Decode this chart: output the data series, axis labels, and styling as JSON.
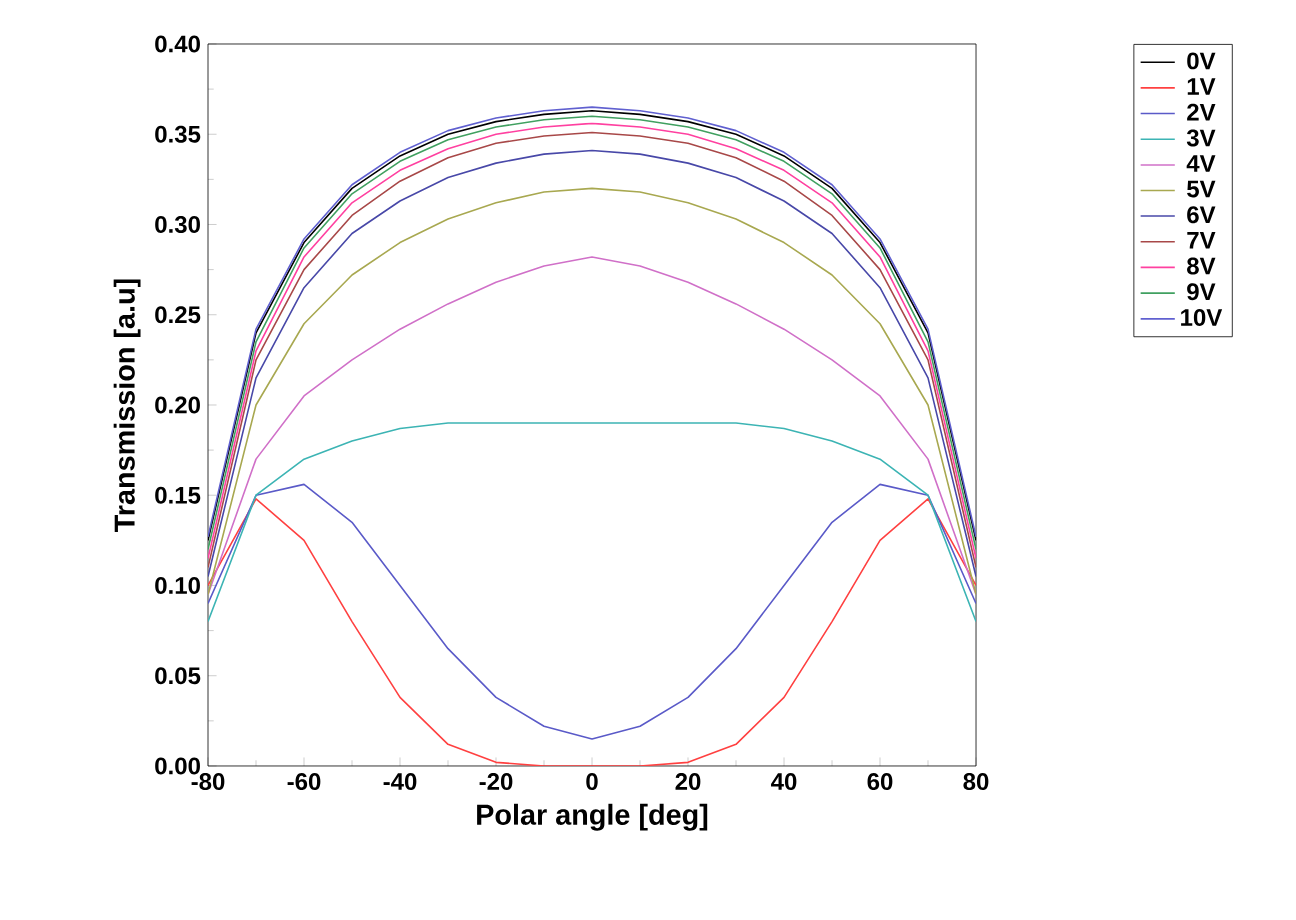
{
  "chart_data": {
    "type": "line",
    "xlabel": "Polar angle [deg]",
    "ylabel": "Transmission [a.u]",
    "x": [
      -80,
      -70,
      -60,
      -50,
      -40,
      -30,
      -20,
      -10,
      0,
      10,
      20,
      30,
      40,
      50,
      60,
      70,
      80
    ],
    "xlim": [
      -80,
      80
    ],
    "xticks": [
      -80,
      -60,
      -40,
      -20,
      0,
      20,
      40,
      60,
      80
    ],
    "ylim": [
      0,
      0.4
    ],
    "yticks": [
      {
        "value": 0,
        "label": "0.00"
      },
      {
        "value": 0.05,
        "label": "0.05"
      },
      {
        "value": 0.1,
        "label": "0.10"
      },
      {
        "value": 0.15,
        "label": "0.15"
      },
      {
        "value": 0.2,
        "label": "0.20"
      },
      {
        "value": 0.25,
        "label": "0.25"
      },
      {
        "value": 0.3,
        "label": "0.30"
      },
      {
        "value": 0.35,
        "label": "0.35"
      },
      {
        "value": 0.4,
        "label": "0.40"
      }
    ],
    "legend": "right",
    "grid": false,
    "marker": "none",
    "line_style": "solid",
    "series": [
      {
        "name": "0V",
        "color": "#000000",
        "values": [
          0.125,
          0.24,
          0.29,
          0.32,
          0.338,
          0.35,
          0.357,
          0.361,
          0.363,
          0.361,
          0.357,
          0.35,
          0.338,
          0.32,
          0.29,
          0.24,
          0.125
        ]
      },
      {
        "name": "1V",
        "color": "#ff4040",
        "values": [
          0.1,
          0.148,
          0.125,
          0.08,
          0.038,
          0.012,
          0.002,
          0.0,
          0.0,
          0.0,
          0.002,
          0.012,
          0.038,
          0.08,
          0.125,
          0.148,
          0.1
        ]
      },
      {
        "name": "2V",
        "color": "#5a5ac8",
        "values": [
          0.09,
          0.15,
          0.156,
          0.135,
          0.1,
          0.065,
          0.038,
          0.022,
          0.015,
          0.022,
          0.038,
          0.065,
          0.1,
          0.135,
          0.156,
          0.15,
          0.09
        ]
      },
      {
        "name": "3V",
        "color": "#3cb4b4",
        "values": [
          0.08,
          0.15,
          0.17,
          0.18,
          0.187,
          0.19,
          0.19,
          0.19,
          0.19,
          0.19,
          0.19,
          0.19,
          0.187,
          0.18,
          0.17,
          0.15,
          0.08
        ]
      },
      {
        "name": "4V",
        "color": "#d070c8",
        "values": [
          0.095,
          0.17,
          0.205,
          0.225,
          0.242,
          0.256,
          0.268,
          0.277,
          0.282,
          0.277,
          0.268,
          0.256,
          0.242,
          0.225,
          0.205,
          0.17,
          0.095
        ]
      },
      {
        "name": "5V",
        "color": "#a8a850",
        "values": [
          0.095,
          0.2,
          0.245,
          0.272,
          0.29,
          0.303,
          0.312,
          0.318,
          0.32,
          0.318,
          0.312,
          0.303,
          0.29,
          0.272,
          0.245,
          0.2,
          0.095
        ]
      },
      {
        "name": "6V",
        "color": "#4848a8",
        "values": [
          0.105,
          0.215,
          0.265,
          0.295,
          0.313,
          0.326,
          0.334,
          0.339,
          0.341,
          0.339,
          0.334,
          0.326,
          0.313,
          0.295,
          0.265,
          0.215,
          0.105
        ]
      },
      {
        "name": "7V",
        "color": "#a84848",
        "values": [
          0.11,
          0.225,
          0.275,
          0.305,
          0.324,
          0.337,
          0.345,
          0.349,
          0.351,
          0.349,
          0.345,
          0.337,
          0.324,
          0.305,
          0.275,
          0.225,
          0.11
        ]
      },
      {
        "name": "8V",
        "color": "#ff40a0",
        "values": [
          0.115,
          0.23,
          0.282,
          0.312,
          0.33,
          0.342,
          0.35,
          0.354,
          0.356,
          0.354,
          0.35,
          0.342,
          0.33,
          0.312,
          0.282,
          0.23,
          0.115
        ]
      },
      {
        "name": "9V",
        "color": "#40a060",
        "values": [
          0.12,
          0.235,
          0.287,
          0.317,
          0.335,
          0.347,
          0.354,
          0.358,
          0.36,
          0.358,
          0.354,
          0.347,
          0.335,
          0.317,
          0.287,
          0.235,
          0.12
        ]
      },
      {
        "name": "10V",
        "color": "#6060d0",
        "values": [
          0.127,
          0.242,
          0.292,
          0.322,
          0.34,
          0.352,
          0.359,
          0.363,
          0.365,
          0.363,
          0.359,
          0.352,
          0.34,
          0.322,
          0.292,
          0.242,
          0.127
        ]
      }
    ]
  }
}
